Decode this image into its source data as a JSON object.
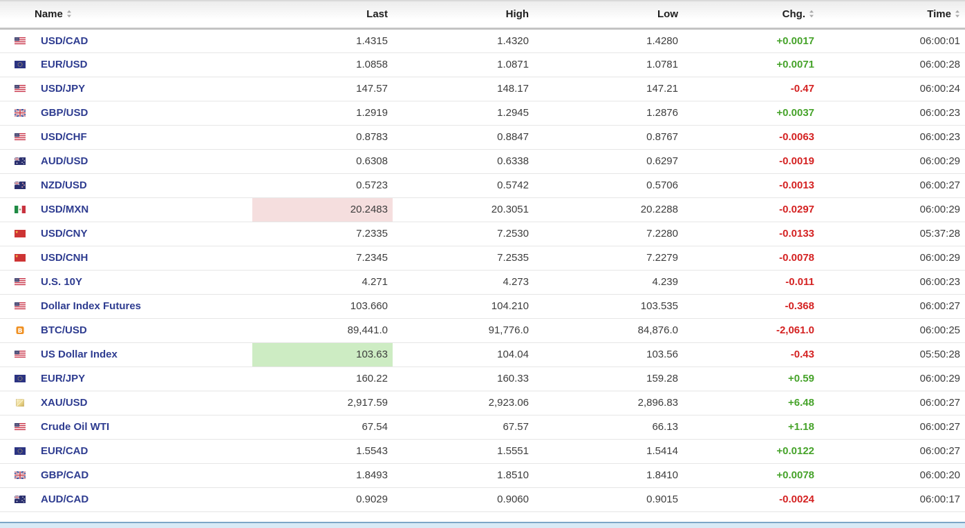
{
  "colors": {
    "chg_up": "#46a32a",
    "chg_down": "#d42222",
    "instrument_link": "#2e3c90",
    "value_text": "#3c3c3c",
    "highlight_up_bg": "#cdecc3",
    "highlight_down_bg": "#f5dede",
    "bottom_strip_bg": "#d8eaf6",
    "bottom_strip_border": "#7ca6c6"
  },
  "table": {
    "columns": [
      {
        "key": "name",
        "label": "Name",
        "sortable": true
      },
      {
        "key": "last",
        "label": "Last",
        "sortable": false
      },
      {
        "key": "high",
        "label": "High",
        "sortable": false
      },
      {
        "key": "low",
        "label": "Low",
        "sortable": false
      },
      {
        "key": "chg",
        "label": "Chg.",
        "sortable": true
      },
      {
        "key": "time",
        "label": "Time",
        "sortable": true
      }
    ],
    "rows": [
      {
        "name": "USD/CAD",
        "flag": "us-flag-icon",
        "last": "1.4315",
        "high": "1.4320",
        "low": "1.4280",
        "chg": "+0.0017",
        "chg_dir": "up",
        "time": "06:00:01",
        "last_highlight": "none"
      },
      {
        "name": "EUR/USD",
        "flag": "eu-flag-icon",
        "last": "1.0858",
        "high": "1.0871",
        "low": "1.0781",
        "chg": "+0.0071",
        "chg_dir": "up",
        "time": "06:00:28",
        "last_highlight": "none"
      },
      {
        "name": "USD/JPY",
        "flag": "us-flag-icon",
        "last": "147.57",
        "high": "148.17",
        "low": "147.21",
        "chg": "-0.47",
        "chg_dir": "down",
        "time": "06:00:24",
        "last_highlight": "none"
      },
      {
        "name": "GBP/USD",
        "flag": "uk-flag-icon",
        "last": "1.2919",
        "high": "1.2945",
        "low": "1.2876",
        "chg": "+0.0037",
        "chg_dir": "up",
        "time": "06:00:23",
        "last_highlight": "none"
      },
      {
        "name": "USD/CHF",
        "flag": "us-flag-icon",
        "last": "0.8783",
        "high": "0.8847",
        "low": "0.8767",
        "chg": "-0.0063",
        "chg_dir": "down",
        "time": "06:00:23",
        "last_highlight": "none"
      },
      {
        "name": "AUD/USD",
        "flag": "au-flag-icon",
        "last": "0.6308",
        "high": "0.6338",
        "low": "0.6297",
        "chg": "-0.0019",
        "chg_dir": "down",
        "time": "06:00:29",
        "last_highlight": "none"
      },
      {
        "name": "NZD/USD",
        "flag": "nz-flag-icon",
        "last": "0.5723",
        "high": "0.5742",
        "low": "0.5706",
        "chg": "-0.0013",
        "chg_dir": "down",
        "time": "06:00:27",
        "last_highlight": "none"
      },
      {
        "name": "USD/MXN",
        "flag": "mx-flag-icon",
        "last": "20.2483",
        "high": "20.3051",
        "low": "20.2288",
        "chg": "-0.0297",
        "chg_dir": "down",
        "time": "06:00:29",
        "last_highlight": "down"
      },
      {
        "name": "USD/CNY",
        "flag": "cn-flag-icon",
        "last": "7.2335",
        "high": "7.2530",
        "low": "7.2280",
        "chg": "-0.0133",
        "chg_dir": "down",
        "time": "05:37:28",
        "last_highlight": "none"
      },
      {
        "name": "USD/CNH",
        "flag": "cn-flag-icon",
        "last": "7.2345",
        "high": "7.2535",
        "low": "7.2279",
        "chg": "-0.0078",
        "chg_dir": "down",
        "time": "06:00:29",
        "last_highlight": "none"
      },
      {
        "name": "U.S. 10Y",
        "flag": "us-flag-icon",
        "last": "4.271",
        "high": "4.273",
        "low": "4.239",
        "chg": "-0.011",
        "chg_dir": "down",
        "time": "06:00:23",
        "last_highlight": "none"
      },
      {
        "name": "Dollar Index Futures",
        "flag": "us-flag-icon",
        "last": "103.660",
        "high": "104.210",
        "low": "103.535",
        "chg": "-0.368",
        "chg_dir": "down",
        "time": "06:00:27",
        "last_highlight": "none"
      },
      {
        "name": "BTC/USD",
        "flag": "bitcoin-icon",
        "last": "89,441.0",
        "high": "91,776.0",
        "low": "84,876.0",
        "chg": "-2,061.0",
        "chg_dir": "down",
        "time": "06:00:25",
        "last_highlight": "none"
      },
      {
        "name": "US Dollar Index",
        "flag": "us-flag-icon",
        "last": "103.63",
        "high": "104.04",
        "low": "103.56",
        "chg": "-0.43",
        "chg_dir": "down",
        "time": "05:50:28",
        "last_highlight": "up"
      },
      {
        "name": "EUR/JPY",
        "flag": "eu-flag-icon",
        "last": "160.22",
        "high": "160.33",
        "low": "159.28",
        "chg": "+0.59",
        "chg_dir": "up",
        "time": "06:00:29",
        "last_highlight": "none"
      },
      {
        "name": "XAU/USD",
        "flag": "gold-icon",
        "last": "2,917.59",
        "high": "2,923.06",
        "low": "2,896.83",
        "chg": "+6.48",
        "chg_dir": "up",
        "time": "06:00:27",
        "last_highlight": "none"
      },
      {
        "name": "Crude Oil WTI",
        "flag": "us-flag-icon",
        "last": "67.54",
        "high": "67.57",
        "low": "66.13",
        "chg": "+1.18",
        "chg_dir": "up",
        "time": "06:00:27",
        "last_highlight": "none"
      },
      {
        "name": "EUR/CAD",
        "flag": "eu-flag-icon",
        "last": "1.5543",
        "high": "1.5551",
        "low": "1.5414",
        "chg": "+0.0122",
        "chg_dir": "up",
        "time": "06:00:27",
        "last_highlight": "none"
      },
      {
        "name": "GBP/CAD",
        "flag": "uk-flag-icon",
        "last": "1.8493",
        "high": "1.8510",
        "low": "1.8410",
        "chg": "+0.0078",
        "chg_dir": "up",
        "time": "06:00:20",
        "last_highlight": "none"
      },
      {
        "name": "AUD/CAD",
        "flag": "au-flag-icon",
        "last": "0.9029",
        "high": "0.9060",
        "low": "0.9015",
        "chg": "-0.0024",
        "chg_dir": "down",
        "time": "06:00:17",
        "last_highlight": "none"
      }
    ]
  }
}
